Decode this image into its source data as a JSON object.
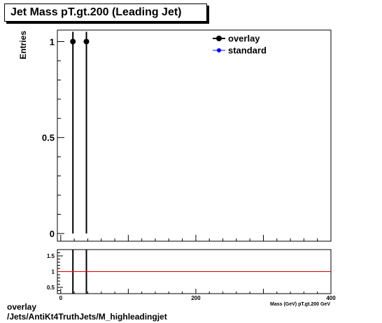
{
  "header": {
    "title": "Jet Mass pT.gt.200 (Leading Jet)"
  },
  "footer": {
    "line1": "overlay",
    "line2": "/Jets/AntiKt4TruthJets/M_highleadingjet"
  },
  "colors": {
    "overlay": "#000000",
    "standard": "#0000ff",
    "ratio_line": "#cc0000"
  },
  "chart_data": [
    {
      "type": "scatter",
      "panel": "main",
      "title": "Jet Mass pT.gt.200 (Leading Jet)",
      "ylabel": "Entries",
      "xlim": [
        -5,
        400
      ],
      "ylim": [
        -0.04,
        1.06
      ],
      "y_ticks": [
        0,
        0.5,
        1
      ],
      "y_tick_labels": [
        "0",
        "0.5",
        "1"
      ],
      "legend_placement": "top-right",
      "series": [
        {
          "name": "overlay",
          "x": [
            18,
            38
          ],
          "y": [
            1,
            1
          ],
          "yerr": [
            1,
            1
          ]
        },
        {
          "name": "standard",
          "x": [],
          "y": []
        }
      ]
    },
    {
      "type": "line",
      "panel": "ratio",
      "xlabel": "Mass (GeV) pT.gt.200 GeV",
      "xlim": [
        -5,
        400
      ],
      "ylim": [
        0.3,
        1.7
      ],
      "x_ticks": [
        0,
        200,
        400
      ],
      "x_tick_labels": [
        "0",
        "200",
        "400"
      ],
      "y_ticks": [
        0.5,
        1,
        1.5
      ],
      "y_tick_labels": [
        "0.5",
        "1",
        "1.5"
      ],
      "reference_line": 1,
      "points": {
        "x": [
          18,
          38
        ],
        "y": [
          1,
          1
        ]
      }
    }
  ]
}
